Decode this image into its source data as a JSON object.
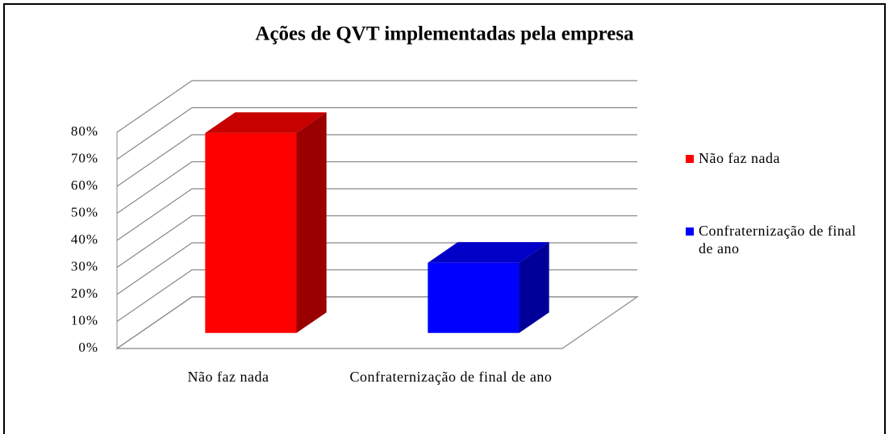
{
  "chart_data": {
    "type": "bar3d",
    "title": "Ações de QVT implementadas pela empresa",
    "categories": [
      "Não faz nada",
      "Confraternização de final de ano"
    ],
    "series": [
      {
        "name": "Não faz nada",
        "color": "#ff0000",
        "values": [
          74,
          null
        ]
      },
      {
        "name": "Confraternização de final de ano",
        "color": "#0000ff",
        "values": [
          null,
          26
        ]
      }
    ],
    "ylim": [
      0,
      80
    ],
    "yticks": [
      {
        "value": 0,
        "label": "0%"
      },
      {
        "value": 10,
        "label": "10%"
      },
      {
        "value": 20,
        "label": "20%"
      },
      {
        "value": 30,
        "label": "30%"
      },
      {
        "value": 40,
        "label": "40%"
      },
      {
        "value": 50,
        "label": "50%"
      },
      {
        "value": 60,
        "label": "60%"
      },
      {
        "value": 70,
        "label": "70%"
      },
      {
        "value": 80,
        "label": "80%"
      }
    ],
    "grid": true,
    "legend": "right"
  }
}
